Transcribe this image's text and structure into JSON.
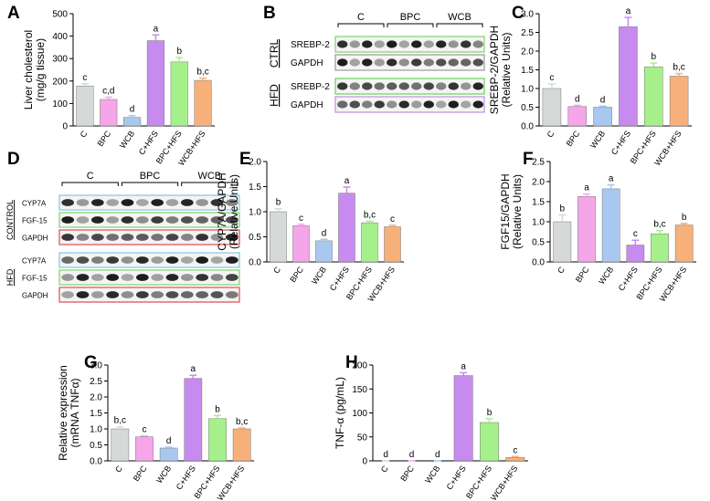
{
  "chart_data": [
    {
      "type": "bar",
      "panel": "A",
      "ylabel": [
        "Liver cholesterol",
        "(mg/g tissue)"
      ],
      "categories": [
        "C",
        "BPC",
        "WCB",
        "C+HFS",
        "BPC+HFS",
        "WCB+HFS"
      ],
      "values": [
        178,
        118,
        38,
        380,
        285,
        203
      ],
      "errors": [
        10,
        10,
        8,
        25,
        20,
        10
      ],
      "annotations": [
        "c",
        "c,d",
        "d",
        "a",
        "b",
        "b,c"
      ],
      "colors": [
        "#d5d9d8",
        "#f4a6e8",
        "#a8c8ef",
        "#c78bef",
        "#a6f08c",
        "#f8b07a"
      ],
      "ylim": [
        0,
        500
      ],
      "yticks": [
        0,
        100,
        200,
        300,
        400,
        500
      ]
    },
    {
      "type": "blot",
      "panel": "B",
      "groups": [
        "C",
        "BPC",
        "WCB"
      ],
      "conditions": [
        "CTRL",
        "HFD"
      ],
      "rows": [
        "SREBP-2",
        "GAPDH",
        "SREBP-2",
        "GAPDH"
      ]
    },
    {
      "type": "bar",
      "panel": "C",
      "ylabel": [
        "SREBP-2/GAPDH",
        "(Relative Units)"
      ],
      "categories": [
        "C",
        "BPC",
        "WCB",
        "C+HFS",
        "BPC+HFS",
        "WCB+HFS"
      ],
      "values": [
        1.0,
        0.52,
        0.5,
        2.65,
        1.58,
        1.33
      ],
      "errors": [
        0.12,
        0.03,
        0.03,
        0.25,
        0.1,
        0.07
      ],
      "annotations": [
        "c",
        "d",
        "d",
        "a",
        "b",
        "b,c"
      ],
      "colors": [
        "#d5d9d8",
        "#f4a6e8",
        "#a8c8ef",
        "#c78bef",
        "#a6f08c",
        "#f8b07a"
      ],
      "ylim": [
        0,
        3
      ],
      "yticks": [
        {
          "value": 0,
          "label": "0.0"
        },
        0.5,
        {
          "value": 1,
          "label": "1.0"
        },
        1.5,
        {
          "value": 2,
          "label": "2.0"
        },
        2.5,
        {
          "value": 3,
          "label": "3.0"
        }
      ]
    },
    {
      "type": "blot",
      "panel": "D",
      "groups": [
        "C",
        "BPC",
        "WCB"
      ],
      "conditions": [
        "CONTROL",
        "HFD"
      ],
      "rows": [
        "CYP7A",
        "FGF-15",
        "GAPDH",
        "CYP7A",
        "FGF-15",
        "GAPDH"
      ]
    },
    {
      "type": "bar",
      "panel": "E",
      "ylabel": [
        "CYP7A/GAPDH",
        "(Relative Units)"
      ],
      "categories": [
        "C",
        "BPC",
        "WCB",
        "C+HFS",
        "BPC+HFS",
        "WCB+HFS"
      ],
      "values": [
        1.0,
        0.72,
        0.42,
        1.37,
        0.78,
        0.7
      ],
      "errors": [
        0.06,
        0.03,
        0.03,
        0.12,
        0.03,
        0.03
      ],
      "annotations": [
        "b",
        "c",
        "d",
        "a",
        "b,c",
        "c"
      ],
      "colors": [
        "#d5d9d8",
        "#f4a6e8",
        "#a8c8ef",
        "#c78bef",
        "#a6f08c",
        "#f8b07a"
      ],
      "ylim": [
        0,
        2
      ],
      "yticks": [
        {
          "value": 0,
          "label": "0.0"
        },
        0.5,
        {
          "value": 1,
          "label": "1.0"
        },
        1.5,
        {
          "value": 2,
          "label": "2.0"
        }
      ]
    },
    {
      "type": "bar",
      "panel": "F",
      "ylabel": [
        "FGF15/GAPDH",
        "(Relative Units)"
      ],
      "categories": [
        "C",
        "BPC",
        "WCB",
        "C+HFS",
        "BPC+HFS",
        "WCB+HFS"
      ],
      "values": [
        1.0,
        1.63,
        1.82,
        0.42,
        0.7,
        0.92
      ],
      "errors": [
        0.17,
        0.06,
        0.1,
        0.12,
        0.08,
        0.04
      ],
      "annotations": [
        "b",
        "a",
        "a",
        "c",
        "b,c",
        "b"
      ],
      "colors": [
        "#d5d9d8",
        "#f4a6e8",
        "#a8c8ef",
        "#c78bef",
        "#a6f08c",
        "#f8b07a"
      ],
      "ylim": [
        0,
        2.5
      ],
      "yticks": [
        {
          "value": 0,
          "label": "0.0"
        },
        0.5,
        {
          "value": 1,
          "label": "1.0"
        },
        1.5,
        {
          "value": 2,
          "label": "2.0"
        },
        2.5
      ]
    },
    {
      "type": "bar",
      "panel": "G",
      "ylabel": [
        "Relative expression",
        "(mRNA TNFα)"
      ],
      "categories": [
        "C",
        "BPC",
        "WCB",
        "C+HFS",
        "BPC+HFS",
        "WCB+HFS"
      ],
      "values": [
        1.0,
        0.75,
        0.4,
        2.58,
        1.32,
        1.0
      ],
      "errors": [
        0.07,
        0.03,
        0.03,
        0.1,
        0.1,
        0.03
      ],
      "annotations": [
        "b,c",
        "c",
        "d",
        "a",
        "b",
        "b,c"
      ],
      "colors": [
        "#d5d9d8",
        "#f4a6e8",
        "#a8c8ef",
        "#c78bef",
        "#a6f08c",
        "#f8b07a"
      ],
      "ylim": [
        0,
        3
      ],
      "yticks": [
        {
          "value": 0,
          "label": "0.0"
        },
        0.5,
        {
          "value": 1,
          "label": "1.0"
        },
        1.5,
        {
          "value": 2,
          "label": "2.0"
        },
        2.5,
        {
          "value": 3,
          "label": "3.0"
        }
      ]
    },
    {
      "type": "bar",
      "panel": "H",
      "ylabel": [
        "TNF-α (pg/mL)"
      ],
      "categories": [
        "C",
        "BPC",
        "WCB",
        "C+HFS",
        "BPC+HFS",
        "WCB+HFS"
      ],
      "values": [
        0,
        0,
        0,
        178,
        80,
        7
      ],
      "errors": [
        0,
        0,
        0,
        6,
        8,
        2
      ],
      "annotations": [
        "d",
        "d",
        "d",
        "a",
        "b",
        "c"
      ],
      "colors": [
        "#d5d9d8",
        "#f4a6e8",
        "#a8c8ef",
        "#c78bef",
        "#a6f08c",
        "#f8b07a"
      ],
      "ylim": [
        0,
        200
      ],
      "yticks": [
        0,
        50,
        100,
        150,
        200
      ]
    }
  ]
}
